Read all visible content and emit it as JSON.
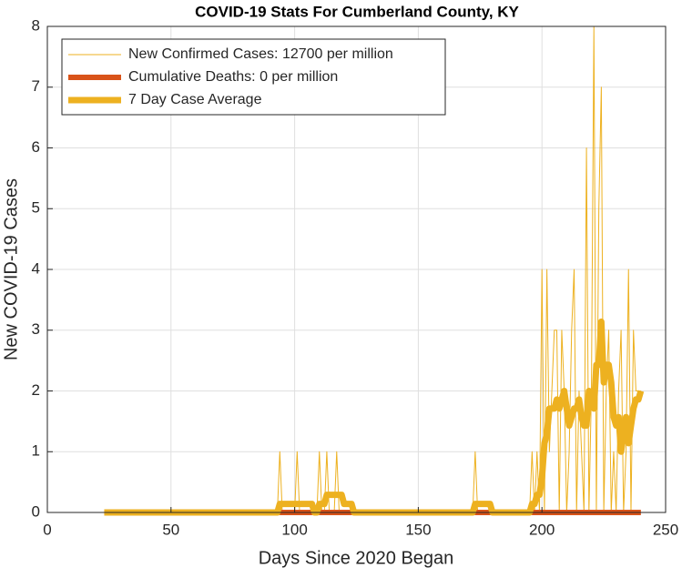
{
  "chart_data": {
    "type": "line",
    "title": "COVID-19 Stats For Cumberland County, KY",
    "xlabel": "Days Since 2020 Began",
    "ylabel": "New COVID-19 Cases",
    "xlim": [
      0,
      250
    ],
    "xticks": [
      0,
      50,
      100,
      150,
      200,
      250
    ],
    "ylim": [
      0,
      8
    ],
    "yticks": [
      0,
      1,
      2,
      3,
      4,
      5,
      6,
      7,
      8
    ],
    "grid": true,
    "legend": "northwest",
    "x": [
      23,
      90,
      91,
      92,
      93,
      94,
      95,
      96,
      97,
      98,
      99,
      100,
      101,
      102,
      103,
      104,
      105,
      106,
      107,
      108,
      109,
      110,
      111,
      112,
      113,
      114,
      115,
      116,
      117,
      118,
      119,
      120,
      121,
      122,
      123,
      124,
      125,
      170,
      171,
      172,
      173,
      174,
      175,
      176,
      177,
      178,
      179,
      180,
      181,
      182,
      183,
      184,
      185,
      186,
      187,
      188,
      189,
      190,
      191,
      192,
      193,
      194,
      195,
      196,
      197,
      198,
      199,
      200,
      201,
      202,
      203,
      204,
      205,
      206,
      207,
      208,
      209,
      210,
      211,
      212,
      213,
      214,
      215,
      216,
      217,
      218,
      219,
      220,
      221,
      222,
      223,
      224,
      225,
      226,
      227,
      228,
      229,
      230,
      231,
      232,
      233,
      234,
      235,
      236,
      237,
      238,
      239,
      240
    ],
    "series": [
      {
        "name": "New Confirmed Cases: 12700 per million",
        "color": "#EDB120",
        "line_width": 1,
        "values": [
          0,
          0,
          0,
          0,
          0,
          1,
          0,
          0,
          0,
          0,
          0,
          0,
          1,
          0,
          0,
          0,
          0,
          0,
          0,
          0,
          0,
          1,
          0,
          0,
          1,
          0,
          0,
          0,
          1,
          0,
          0,
          0,
          0,
          0,
          0,
          0,
          0,
          0,
          0,
          0,
          1,
          0,
          0,
          0,
          0,
          0,
          0,
          0,
          0,
          0,
          0,
          0,
          0,
          0,
          0,
          0,
          0,
          0,
          0,
          0,
          0,
          0,
          0,
          1,
          0,
          1,
          0,
          4,
          0,
          4,
          1,
          2,
          3,
          3,
          0,
          3,
          2,
          0,
          1,
          3,
          4,
          0,
          2,
          1,
          0,
          6,
          0,
          2,
          8,
          0,
          5,
          7,
          0,
          2,
          3,
          0,
          1,
          0,
          2,
          3,
          0,
          1,
          4,
          0,
          3,
          2,
          2,
          2
        ]
      },
      {
        "name": "Cumulative Deaths: 0 per million",
        "color": "#D95319",
        "line_width": 6,
        "values": [
          0,
          0,
          0,
          0,
          0,
          0,
          0,
          0,
          0,
          0,
          0,
          0,
          0,
          0,
          0,
          0,
          0,
          0,
          0,
          0,
          0,
          0,
          0,
          0,
          0,
          0,
          0,
          0,
          0,
          0,
          0,
          0,
          0,
          0,
          0,
          0,
          0,
          0,
          0,
          0,
          0,
          0,
          0,
          0,
          0,
          0,
          0,
          0,
          0,
          0,
          0,
          0,
          0,
          0,
          0,
          0,
          0,
          0,
          0,
          0,
          0,
          0,
          0,
          0,
          0,
          0,
          0,
          0,
          0,
          0,
          0,
          0,
          0,
          0,
          0,
          0,
          0,
          0,
          0,
          0,
          0,
          0,
          0,
          0,
          0,
          0,
          0,
          0,
          0,
          0,
          0,
          0,
          0,
          0,
          0,
          0,
          0,
          0,
          0,
          0,
          0,
          0,
          0,
          0,
          0,
          0,
          0,
          0
        ]
      },
      {
        "name": "7 Day Case Average",
        "color": "#EDB120",
        "line_width": 7,
        "values": [
          0,
          0,
          0,
          0,
          0,
          0.14,
          0.14,
          0.14,
          0.14,
          0.14,
          0.14,
          0.14,
          0.14,
          0.14,
          0.14,
          0.14,
          0.14,
          0.14,
          0.14,
          0,
          0,
          0.14,
          0.14,
          0.14,
          0.29,
          0.29,
          0.29,
          0.29,
          0.29,
          0.29,
          0.29,
          0.14,
          0.14,
          0.14,
          0.14,
          0,
          0,
          0,
          0,
          0,
          0.14,
          0.14,
          0.14,
          0.14,
          0.14,
          0.14,
          0.14,
          0,
          0,
          0,
          0,
          0,
          0,
          0,
          0,
          0,
          0,
          0,
          0,
          0,
          0,
          0,
          0,
          0.14,
          0.14,
          0.29,
          0.29,
          0.57,
          1.14,
          1.29,
          1.71,
          1.71,
          1.71,
          1.86,
          1.71,
          1.86,
          2.0,
          1.71,
          1.43,
          1.57,
          1.71,
          1.71,
          1.86,
          1.57,
          1.43,
          1.43,
          2.0,
          1.86,
          1.71,
          2.43,
          2.43,
          3.14,
          2.14,
          2.43,
          2.43,
          2.14,
          1.57,
          1.43,
          1.57,
          1.0,
          1.29,
          1.57,
          1.14,
          1.43,
          1.71,
          1.86,
          1.86,
          2.0
        ]
      }
    ]
  }
}
